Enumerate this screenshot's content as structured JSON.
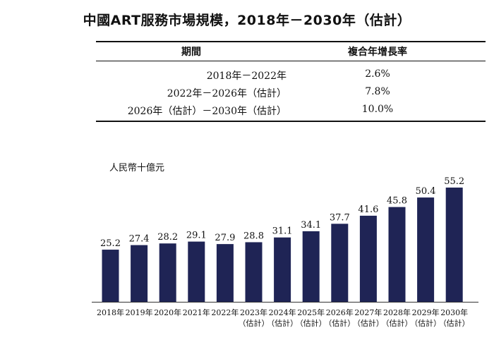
{
  "title": "中國ART服務市場規模，2018年－2030年（估計）",
  "table": {
    "headers": [
      "期間",
      "複合年增長率"
    ],
    "rows": [
      {
        "period": "2018年－2022年",
        "cagr": "2.6%"
      },
      {
        "period": "2022年－2026年（估計）",
        "cagr": "7.8%"
      },
      {
        "period": "2026年（估計）－2030年（估計）",
        "cagr": "10.0%"
      }
    ]
  },
  "colors": {
    "bar": "#1f2455"
  },
  "chart_data": {
    "type": "bar",
    "title": "中國ART服務市場規模，2018年－2030年（估計）",
    "ylabel": "人民幣十億元",
    "xlabel": "",
    "categories": [
      "2018年",
      "2019年",
      "2020年",
      "2021年",
      "2022年",
      "2023年",
      "2024年",
      "2025年",
      "2026年",
      "2027年",
      "2028年",
      "2029年",
      "2030年"
    ],
    "category_sublabels": [
      "",
      "",
      "",
      "",
      "",
      "（估計）",
      "（估計）",
      "（估計）",
      "（估計）",
      "（估計）",
      "（估計）",
      "（估計）",
      "（估計）"
    ],
    "values": [
      25.2,
      27.4,
      28.2,
      29.1,
      27.9,
      28.8,
      31.1,
      34.1,
      37.7,
      41.6,
      45.8,
      50.4,
      55.2
    ],
    "value_labels": [
      "25.2",
      "27.4",
      "28.2",
      "29.1",
      "27.9",
      "28.8",
      "31.1",
      "34.1",
      "37.7",
      "41.6",
      "45.8",
      "50.4",
      "55.2"
    ],
    "ylim": [
      0,
      60
    ],
    "grid": false,
    "legend": "none"
  }
}
